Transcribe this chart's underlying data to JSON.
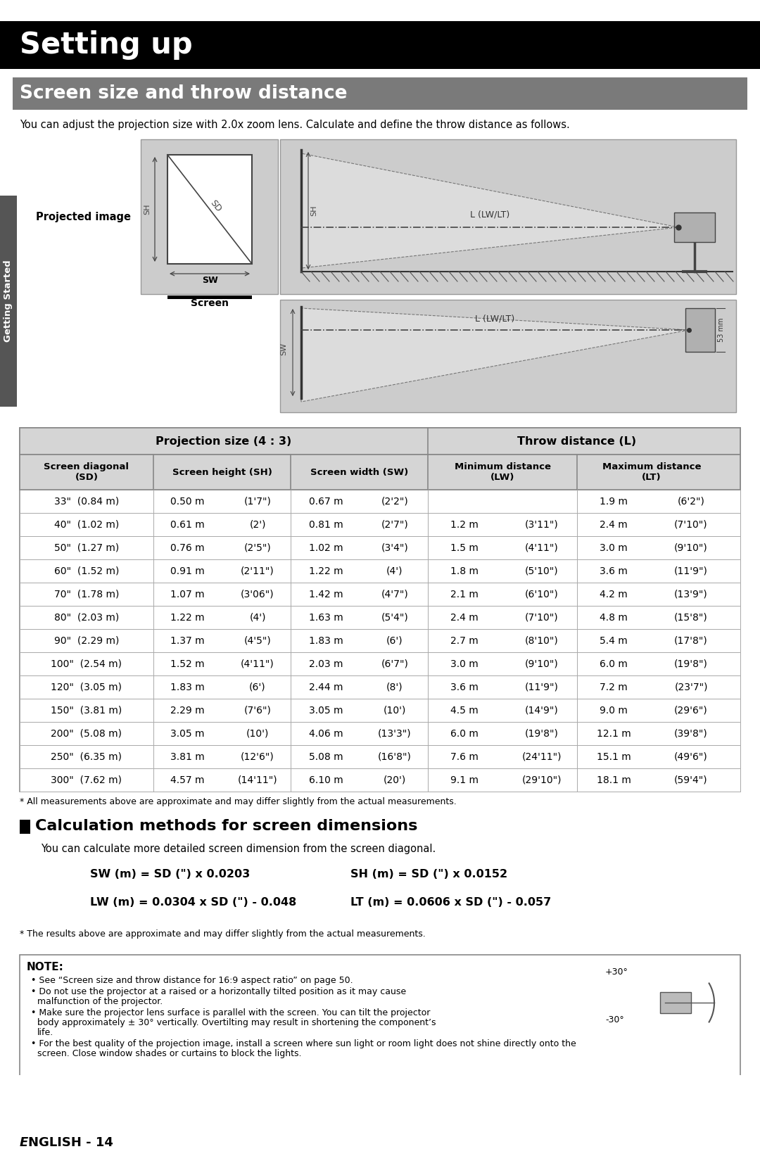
{
  "page_bg": "#ffffff",
  "title_bar_color": "#000000",
  "title_text": "Setting up",
  "title_text_color": "#ffffff",
  "subtitle_bar_color": "#7a7a7a",
  "subtitle_text": "Screen size and throw distance",
  "subtitle_text_color": "#ffffff",
  "intro_text": "You can adjust the projection size with 2.0x zoom lens. Calculate and define the throw distance as follows.",
  "projected_image_label": "Projected image",
  "screen_label": "Screen",
  "table_headers_top": [
    "Projection size (4 : 3)",
    "Throw distance (L)"
  ],
  "table_headers_sub": [
    "Screen diagonal\n(SD)",
    "Screen height (SH)",
    "Screen width (SW)",
    "Minimum distance\n(LW)",
    "Maximum distance\n(LT)"
  ],
  "table_data": [
    [
      "33\"  (0.84 m)",
      "0.50 m",
      "(1'7\")",
      "0.67 m",
      "(2'2\")",
      "",
      "",
      "1.9 m",
      "(6'2\")"
    ],
    [
      "40\"  (1.02 m)",
      "0.61 m",
      "(2')",
      "0.81 m",
      "(2'7\")",
      "1.2 m",
      "(3'11\")",
      "2.4 m",
      "(7'10\")"
    ],
    [
      "50\"  (1.27 m)",
      "0.76 m",
      "(2'5\")",
      "1.02 m",
      "(3'4\")",
      "1.5 m",
      "(4'11\")",
      "3.0 m",
      "(9'10\")"
    ],
    [
      "60\"  (1.52 m)",
      "0.91 m",
      "(2'11\")",
      "1.22 m",
      "(4')",
      "1.8 m",
      "(5'10\")",
      "3.6 m",
      "(11'9\")"
    ],
    [
      "70\"  (1.78 m)",
      "1.07 m",
      "(3'06\")",
      "1.42 m",
      "(4'7\")",
      "2.1 m",
      "(6'10\")",
      "4.2 m",
      "(13'9\")"
    ],
    [
      "80\"  (2.03 m)",
      "1.22 m",
      "(4')",
      "1.63 m",
      "(5'4\")",
      "2.4 m",
      "(7'10\")",
      "4.8 m",
      "(15'8\")"
    ],
    [
      "90\"  (2.29 m)",
      "1.37 m",
      "(4'5\")",
      "1.83 m",
      "(6')",
      "2.7 m",
      "(8'10\")",
      "5.4 m",
      "(17'8\")"
    ],
    [
      "100\"  (2.54 m)",
      "1.52 m",
      "(4'11\")",
      "2.03 m",
      "(6'7\")",
      "3.0 m",
      "(9'10\")",
      "6.0 m",
      "(19'8\")"
    ],
    [
      "120\"  (3.05 m)",
      "1.83 m",
      "(6')",
      "2.44 m",
      "(8')",
      "3.6 m",
      "(11'9\")",
      "7.2 m",
      "(23'7\")"
    ],
    [
      "150\"  (3.81 m)",
      "2.29 m",
      "(7'6\")",
      "3.05 m",
      "(10')",
      "4.5 m",
      "(14'9\")",
      "9.0 m",
      "(29'6\")"
    ],
    [
      "200\"  (5.08 m)",
      "3.05 m",
      "(10')",
      "4.06 m",
      "(13'3\")",
      "6.0 m",
      "(19'8\")",
      "12.1 m",
      "(39'8\")"
    ],
    [
      "250\"  (6.35 m)",
      "3.81 m",
      "(12'6\")",
      "5.08 m",
      "(16'8\")",
      "7.6 m",
      "(24'11\")",
      "15.1 m",
      "(49'6\")"
    ],
    [
      "300\"  (7.62 m)",
      "4.57 m",
      "(14'11\")",
      "6.10 m",
      "(20')",
      "9.1 m",
      "(29'10\")",
      "18.1 m",
      "(59'4\")"
    ]
  ],
  "footnote_table": "* All measurements above are approximate and may differ slightly from the actual measurements.",
  "calc_section_title": "Calculation methods for screen dimensions",
  "calc_intro": "You can calculate more detailed screen dimension from the screen diagonal.",
  "calc_formulas": [
    [
      "SW (m) = SD (\") x 0.0203",
      "SH (m) = SD (\") x 0.0152"
    ],
    [
      "LW (m) = 0.0304 x SD (\") - 0.048",
      "LT (m) = 0.0606 x SD (\") - 0.057"
    ]
  ],
  "footnote_calc": "* The results above are approximate and may differ slightly from the actual measurements.",
  "note_title": "NOTE:",
  "note_bullets": [
    "See “Screen size and throw distance for 16:9 aspect ratio” on page 50.",
    "Do not use the projector at a raised or a horizontally tilted position as it may cause\nmalfunction of the projector.",
    "Make sure the projector lens surface is parallel with the screen. You can tilt the projector\nbody approximately ± 30° vertically. Overtilting may result in shortening the component’s\nlife.",
    "For the best quality of the projection image, install a screen where sun light or room light does not shine directly onto the\nscreen. Close window shades or curtains to block the lights."
  ],
  "page_number_italic": "E",
  "page_number_rest": "NGLISH - 14",
  "getting_started_label": "Getting Started"
}
